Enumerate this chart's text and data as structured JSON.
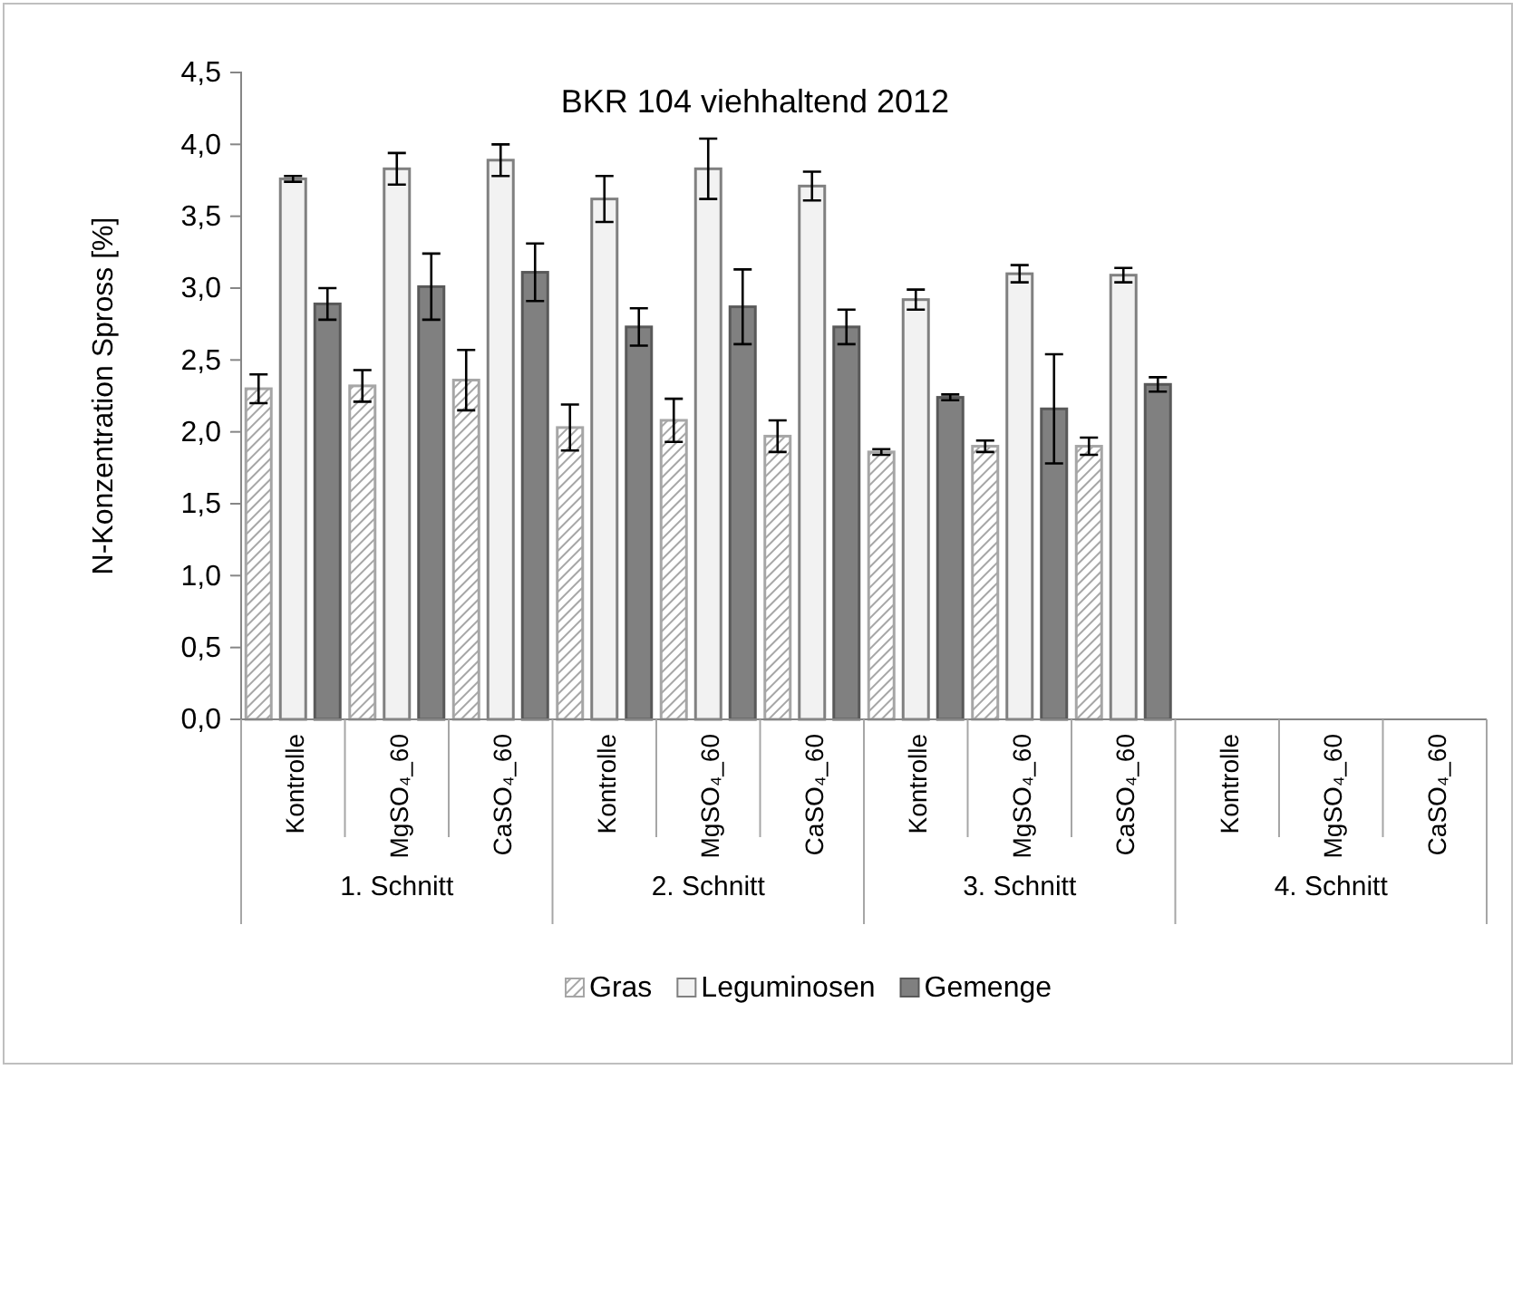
{
  "chart_data": {
    "type": "bar",
    "title": "BKR 104 viehhaltend 2012",
    "ylabel": "N-Konzentration Spross [%]",
    "categories": [
      "Kontrolle",
      "MgSO₄_60",
      "CaSO₄_60",
      "Kontrolle",
      "MgSO₄_60",
      "CaSO₄_60",
      "Kontrolle",
      "MgSO₄_60",
      "CaSO₄_60",
      "Kontrolle",
      "MgSO₄_60",
      "CaSO₄_60"
    ],
    "annotations": [
      "1. Schnitt",
      "2. Schnitt",
      "3. Schnitt",
      "4. Schnitt"
    ],
    "series": [
      {
        "name": "Gras",
        "color": "#a6a6a6",
        "values": [
          2.3,
          2.32,
          2.36,
          2.03,
          2.08,
          1.97,
          1.86,
          1.9,
          1.9,
          null,
          null,
          null
        ],
        "errors": [
          0.1,
          0.11,
          0.21,
          0.16,
          0.15,
          0.11,
          0.02,
          0.04,
          0.06,
          null,
          null,
          null
        ]
      },
      {
        "name": "Leguminosen",
        "color": "#f2f2f2",
        "values": [
          3.76,
          3.83,
          3.89,
          3.62,
          3.83,
          3.71,
          2.92,
          3.1,
          3.09,
          null,
          null,
          null
        ],
        "errors": [
          0.02,
          0.11,
          0.11,
          0.16,
          0.21,
          0.1,
          0.07,
          0.06,
          0.05,
          null,
          null,
          null
        ]
      },
      {
        "name": "Gemenge",
        "color": "#808080",
        "values": [
          2.89,
          3.01,
          3.11,
          2.73,
          2.87,
          2.73,
          2.24,
          2.16,
          2.33,
          null,
          null,
          null
        ],
        "errors": [
          0.11,
          0.23,
          0.2,
          0.13,
          0.26,
          0.12,
          0.02,
          0.38,
          0.05,
          null,
          null,
          null
        ]
      }
    ],
    "ylim": [
      0,
      4.5
    ],
    "yticks": [
      {
        "value": 0,
        "label": "0,0"
      },
      {
        "value": 0.5,
        "label": "0,5"
      },
      {
        "value": 1,
        "label": "1,0"
      },
      {
        "value": 1.5,
        "label": "1,5"
      },
      {
        "value": 2,
        "label": "2,0"
      },
      {
        "value": 2.5,
        "label": "2,5"
      },
      {
        "value": 3,
        "label": "3,0"
      },
      {
        "value": 3.5,
        "label": "3,5"
      },
      {
        "value": 4,
        "label": "4,0"
      },
      {
        "value": 4.5,
        "label": "4,5"
      }
    ],
    "grid": false,
    "legend": "bottom"
  }
}
